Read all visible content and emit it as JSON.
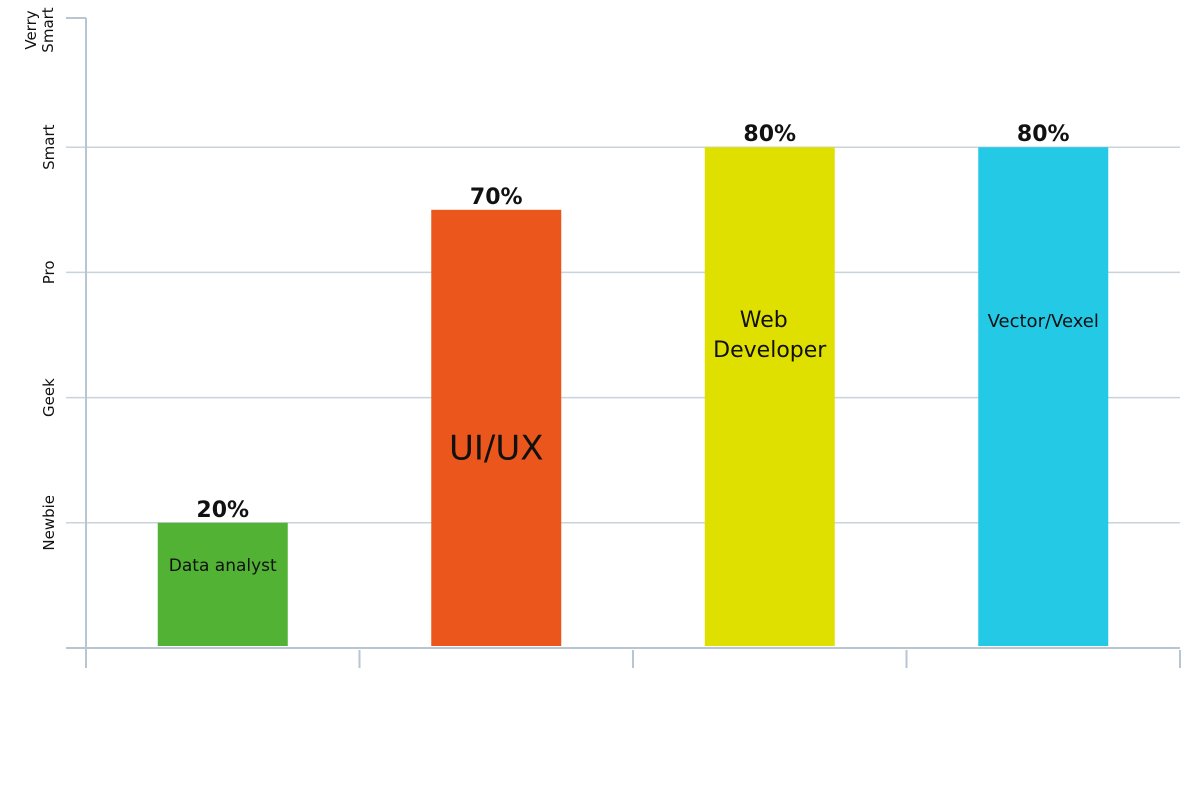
{
  "chart_data": {
    "type": "bar",
    "title": "",
    "xlabel": "",
    "ylabel": "",
    "ylim": [
      0,
      100
    ],
    "grid": true,
    "legend": "none",
    "y_ticks": [
      {
        "value": 20,
        "label": "Newbie"
      },
      {
        "value": 40,
        "label": "Geek"
      },
      {
        "value": 60,
        "label": "Pro"
      },
      {
        "value": 80,
        "label": "Smart"
      },
      {
        "value": 100,
        "label": "Verry Smart"
      }
    ],
    "categories": [
      "Data analyst",
      "UI/UX",
      "Web Developer",
      "Vector/Vexel"
    ],
    "values": [
      20,
      70,
      80,
      80
    ],
    "value_labels": [
      "20%",
      "70%",
      "80%",
      "80%"
    ],
    "colors": [
      "#52b234",
      "#eb561c",
      "#dfe000",
      "#24c9e6"
    ],
    "colors_meta": {
      "grid": "#c9d3dc",
      "axis": "#b8c6d2"
    }
  }
}
